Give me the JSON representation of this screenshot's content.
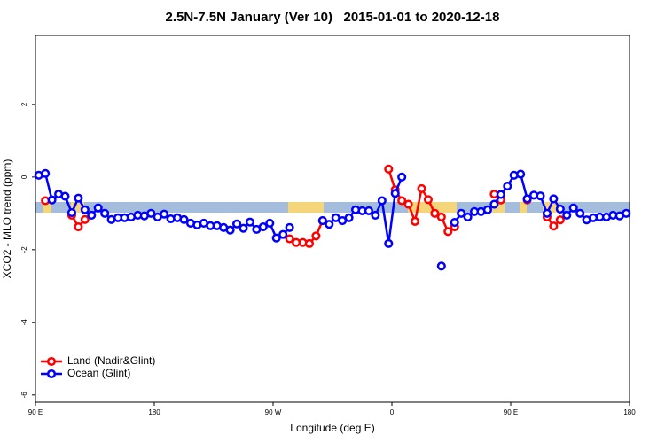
{
  "chart_data": {
    "type": "line",
    "title": "2.5N-7.5N January (Ver 10)   2015-01-01 to 2020-12-18",
    "xlabel": "Longitude (deg E)",
    "ylabel": "XCO2 - MLO trend (ppm)",
    "xlim": [
      90,
      540
    ],
    "xticks": [
      {
        "value": 90,
        "label": "90 E"
      },
      180,
      {
        "value": 270,
        "label": "90 W"
      },
      {
        "value": 360,
        "label": "0"
      },
      {
        "value": 450,
        "label": "90 E"
      },
      {
        "value": 540,
        "label": "180"
      }
    ],
    "ylim": [
      -6.2,
      3.9
    ],
    "yticks": [
      -6,
      -4,
      -2,
      0,
      2
    ],
    "legend": "bottomleft",
    "series": [
      {
        "name": "Land (Nadir&Glint)",
        "color": "#ff0000",
        "x": [
          97.5,
          102.5,
          117.5,
          122.5,
          127.5,
          132.5,
          282.5,
          287.5,
          292.5,
          297.5,
          302.5,
          307.5,
          312.5,
          357.5,
          362.5,
          367.5,
          372.5,
          377.5,
          382.5,
          387.5,
          392.5,
          397.5,
          402.5,
          407.5,
          412.5,
          437.5,
          442.5,
          447.5,
          462.5,
          467.5,
          477.5,
          482.5,
          487.5
        ],
        "values": [
          -0.65,
          null,
          -1.05,
          -1.37,
          -1.17,
          null,
          -1.7,
          -1.8,
          -1.8,
          -1.83,
          -1.62,
          -1.2,
          null,
          0.22,
          -0.35,
          -0.65,
          -0.75,
          -1.22,
          -0.32,
          -0.62,
          -1.0,
          -1.1,
          -1.5,
          -1.37,
          null,
          -0.47,
          -0.63,
          null,
          -0.63,
          null,
          -1.1,
          -1.35,
          -1.18
        ]
      },
      {
        "name": "Ocean (Glint)",
        "color": "#0000ff",
        "x": [
          92.5,
          97.5,
          102.5,
          107.5,
          112.5,
          117.5,
          122.5,
          127.5,
          132.5,
          137.5,
          142.5,
          147.5,
          152.5,
          157.5,
          162.5,
          167.5,
          172.5,
          177.5,
          182.5,
          187.5,
          192.5,
          197.5,
          202.5,
          207.5,
          212.5,
          217.5,
          222.5,
          227.5,
          232.5,
          237.5,
          242.5,
          247.5,
          252.5,
          257.5,
          262.5,
          267.5,
          272.5,
          277.5,
          282.5,
          287.5,
          307.5,
          312.5,
          317.5,
          322.5,
          327.5,
          332.5,
          337.5,
          342.5,
          347.5,
          352.5,
          357.5,
          362.5,
          367.5,
          372.5,
          397.5,
          402.5,
          407.5,
          412.5,
          417.5,
          422.5,
          427.5,
          432.5,
          437.5,
          442.5,
          447.5,
          452.5,
          457.5,
          462.5,
          467.5,
          472.5,
          477.5,
          482.5,
          487.5,
          492.5,
          497.5,
          502.5,
          507.5,
          512.5,
          517.5,
          522.5,
          527.5,
          532.5,
          537.5
        ],
        "values": [
          0.05,
          0.1,
          -0.63,
          -0.47,
          -0.53,
          -0.98,
          -0.58,
          -0.9,
          -1.05,
          -0.85,
          -1.0,
          -1.17,
          -1.12,
          -1.12,
          -1.1,
          -1.05,
          -1.07,
          -1.0,
          -1.1,
          -1.02,
          -1.15,
          -1.12,
          -1.17,
          -1.27,
          -1.32,
          -1.27,
          -1.34,
          -1.34,
          -1.39,
          -1.46,
          -1.29,
          -1.41,
          -1.24,
          -1.44,
          -1.37,
          -1.27,
          -1.68,
          -1.58,
          -1.39,
          null,
          -1.2,
          -1.3,
          -1.12,
          -1.2,
          -1.12,
          -0.9,
          -0.93,
          -0.93,
          -1.05,
          -0.65,
          -1.83,
          -0.45,
          0.0,
          null,
          -2.45,
          null,
          -1.25,
          -1.0,
          -1.1,
          -0.95,
          -0.95,
          -0.9,
          -0.75,
          -0.48,
          -0.25,
          0.05,
          0.08,
          -0.6,
          -0.5,
          -0.52,
          -1.0,
          -0.6,
          -0.88,
          -1.05,
          -0.85,
          -1.0,
          -1.18,
          -1.12,
          -1.1,
          -1.1,
          -1.05,
          -1.07,
          -1.0
        ]
      }
    ]
  }
}
